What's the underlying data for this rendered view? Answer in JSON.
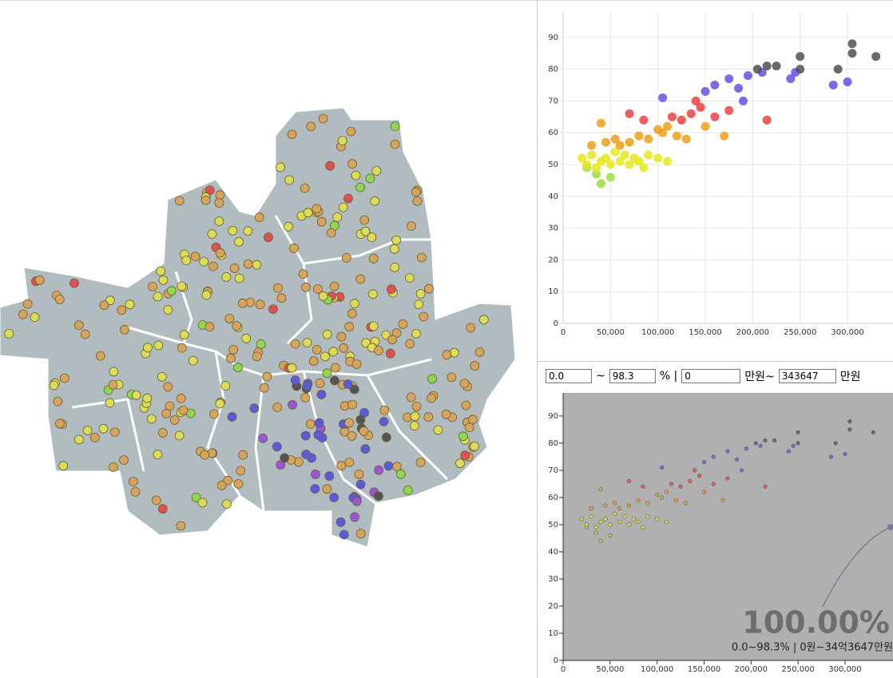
{
  "chart_data": [
    {
      "type": "scatter",
      "xlim": [
        0,
        348000
      ],
      "xticks": [
        0,
        {
          "value": 50000,
          "label": "50,000"
        },
        {
          "value": 100000,
          "label": "100,000"
        },
        {
          "value": 150000,
          "label": "150,000"
        },
        {
          "value": 200000,
          "label": "200,000"
        },
        {
          "value": 250000,
          "label": "250,000"
        },
        {
          "value": 300000,
          "label": "300,000"
        }
      ],
      "ylim": [
        0,
        98
      ],
      "yticks": [
        0,
        10,
        20,
        30,
        40,
        50,
        60,
        70,
        80,
        90
      ],
      "grid": true,
      "series": [
        {
          "color": "#9ade3a",
          "x": [
            35000,
            40000,
            50000,
            25000
          ],
          "y": [
            47,
            44,
            46,
            49
          ]
        },
        {
          "color": "#e8e81a",
          "x": [
            20000,
            25000,
            30000,
            35000,
            40000,
            45000,
            50000,
            55000,
            60000,
            65000,
            70000,
            75000,
            80000,
            85000,
            90000,
            100000,
            110000
          ],
          "y": [
            52,
            50,
            53,
            49,
            51,
            52,
            50,
            54,
            51,
            53,
            50,
            52,
            51,
            49,
            53,
            52,
            51
          ]
        },
        {
          "color": "#f0a010",
          "x": [
            30000,
            45000,
            55000,
            60000,
            70000,
            80000,
            90000,
            100000,
            105000,
            110000,
            120000,
            130000,
            150000,
            170000,
            40000
          ],
          "y": [
            56,
            57,
            58,
            56,
            57,
            59,
            58,
            61,
            60,
            62,
            59,
            58,
            62,
            59,
            63
          ]
        },
        {
          "color": "#f04040",
          "x": [
            70000,
            85000,
            115000,
            125000,
            135000,
            145000,
            160000,
            175000,
            215000,
            140000
          ],
          "y": [
            66,
            64,
            65,
            64,
            66,
            68,
            65,
            67,
            64,
            70
          ]
        },
        {
          "color": "#6a4cf0",
          "x": [
            105000,
            150000,
            160000,
            175000,
            195000,
            185000,
            210000,
            240000,
            245000,
            285000,
            300000,
            190000
          ],
          "y": [
            71,
            73,
            75,
            77,
            78,
            74,
            79,
            77,
            79,
            75,
            76,
            70
          ]
        },
        {
          "color": "#505050",
          "x": [
            205000,
            215000,
            225000,
            250000,
            250000,
            290000,
            305000,
            305000,
            330000
          ],
          "y": [
            80,
            81,
            81,
            84,
            80,
            80,
            88,
            85,
            84
          ]
        }
      ]
    },
    {
      "type": "scatter",
      "xlim": [
        0,
        351000
      ],
      "xticks": [
        0,
        {
          "value": 50000,
          "label": "50,000"
        },
        {
          "value": 100000,
          "label": "100,000"
        },
        {
          "value": 150000,
          "label": "150,000"
        },
        {
          "value": 200000,
          "label": "200,000"
        },
        {
          "value": 250000,
          "label": "250,000"
        },
        {
          "value": 300000,
          "label": "300,000"
        }
      ],
      "ylim": [
        0,
        98.5
      ],
      "yticks": [
        0,
        10,
        20,
        30,
        40,
        50,
        60,
        70,
        80,
        90
      ],
      "summary_pct": "100.00%",
      "summary_range": "0.0~98.3% | 0원~34억3647만원"
    }
  ],
  "filter": {
    "min_pct": "0.0",
    "tilde": "~",
    "max_pct": "98.3",
    "pct_sep": "% |",
    "min_price": "0",
    "unit1": "만원~",
    "max_price": "343647",
    "unit2": "만원"
  }
}
